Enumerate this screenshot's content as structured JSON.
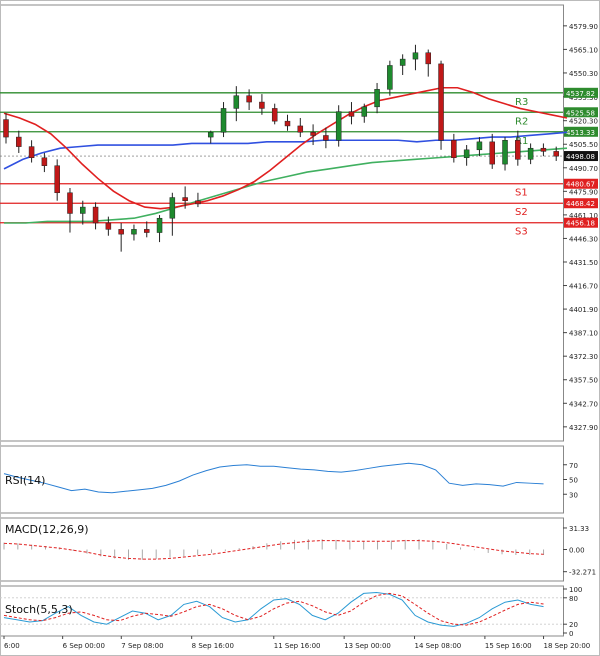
{
  "chart_data": {
    "type": "candlestick",
    "price_axis": {
      "range": [
        4319,
        4593
      ],
      "ticks": [
        4579.9,
        4565.1,
        4550.3,
        4535.3,
        4520.3,
        4505.5,
        4490.7,
        4475.9,
        4461.1,
        4446.3,
        4431.5,
        4416.7,
        4401.9,
        4387.1,
        4372.3,
        4357.5,
        4342.7,
        4327.9
      ],
      "last_price": 4498.08
    },
    "x_ticks": [
      {
        "i": 0,
        "label": "6:00"
      },
      {
        "i": 5,
        "label": "6 Sep 00:00"
      },
      {
        "i": 10,
        "label": "7 Sep 08:00"
      },
      {
        "i": 16,
        "label": "8 Sep 16:00"
      },
      {
        "i": 23,
        "label": "11 Sep 16:00"
      },
      {
        "i": 29,
        "label": "13 Sep 00:00"
      },
      {
        "i": 35,
        "label": "14 Sep 08:00"
      },
      {
        "i": 41,
        "label": "15 Sep 16:00"
      },
      {
        "i": 46,
        "label": "18 Sep 20:00"
      }
    ],
    "levels": [
      {
        "name": "R3",
        "value": 4537.82,
        "color": "#2e8b2e"
      },
      {
        "name": "R2",
        "value": 4525.58,
        "color": "#2e8b2e"
      },
      {
        "name": "R1",
        "value": 4513.33,
        "color": "#2e8b2e"
      },
      {
        "name": "S1",
        "value": 4480.67,
        "color": "#e02020"
      },
      {
        "name": "S2",
        "value": 4468.42,
        "color": "#e02020"
      },
      {
        "name": "S3",
        "value": 4456.18,
        "color": "#e02020"
      }
    ],
    "candles": [
      [
        4521,
        4525,
        4506,
        4510
      ],
      [
        4510,
        4514,
        4500,
        4504
      ],
      [
        4504,
        4508,
        4494,
        4497
      ],
      [
        4497,
        4500,
        4488,
        4492
      ],
      [
        4492,
        4496,
        4470,
        4475
      ],
      [
        4475,
        4478,
        4450,
        4462
      ],
      [
        4462,
        4470,
        4455,
        4466
      ],
      [
        4466,
        4469,
        4452,
        4456
      ],
      [
        4456,
        4460,
        4448,
        4452
      ],
      [
        4452,
        4456,
        4438,
        4449
      ],
      [
        4449,
        4455,
        4445,
        4452
      ],
      [
        4452,
        4457,
        4447,
        4450
      ],
      [
        4450,
        4461,
        4444,
        4459
      ],
      [
        4459,
        4475,
        4448,
        4472
      ],
      [
        4472,
        4479,
        4465,
        4470
      ],
      [
        4470,
        4475,
        4466,
        4468
      ],
      [
        4510,
        4514,
        4506,
        4513
      ],
      [
        4513,
        4532,
        4510,
        4528
      ],
      [
        4528,
        4542,
        4520,
        4536
      ],
      [
        4536,
        4540,
        4527,
        4532
      ],
      [
        4532,
        4537,
        4524,
        4528
      ],
      [
        4528,
        4531,
        4518,
        4520
      ],
      [
        4520,
        4524,
        4514,
        4517
      ],
      [
        4517,
        4522,
        4510,
        4513
      ],
      [
        4513,
        4518,
        4505,
        4511
      ],
      [
        4511,
        4516,
        4503,
        4508
      ],
      [
        4508,
        4530,
        4504,
        4526
      ],
      [
        4526,
        4532,
        4518,
        4523
      ],
      [
        4523,
        4531,
        4519,
        4529
      ],
      [
        4529,
        4544,
        4525,
        4540
      ],
      [
        4540,
        4558,
        4536,
        4555
      ],
      [
        4555,
        4562,
        4549,
        4559
      ],
      [
        4559,
        4568,
        4552,
        4563
      ],
      [
        4563,
        4565,
        4548,
        4556
      ],
      [
        4556,
        4558,
        4502,
        4508
      ],
      [
        4508,
        4512,
        4494,
        4497
      ],
      [
        4497,
        4505,
        4492,
        4502
      ],
      [
        4502,
        4510,
        4498,
        4507
      ],
      [
        4507,
        4512,
        4490,
        4493
      ],
      [
        4493,
        4510,
        4489,
        4508
      ],
      [
        4508,
        4514,
        4492,
        4496
      ],
      [
        4496,
        4506,
        4493,
        4503
      ],
      [
        4503,
        4506,
        4498,
        4501
      ],
      [
        4501,
        4504,
        4495,
        4498
      ]
    ],
    "ma_red": [
      4525,
      4522,
      4518,
      4512,
      4503,
      4493,
      4484,
      4476,
      4470,
      4466,
      4465,
      4466,
      4468,
      4470,
      4473,
      4477,
      4482,
      4489,
      4497,
      4505,
      4512,
      4518,
      4524,
      4529,
      4533,
      4535,
      4537,
      4539,
      4541,
      4541,
      4538,
      4534,
      4531,
      4528,
      4526,
      4524,
      4522
    ],
    "ma_blue": [
      4490,
      4496,
      4500,
      4503,
      4504,
      4505,
      4505,
      4505,
      4505,
      4505,
      4506,
      4506,
      4506,
      4506,
      4507,
      4507,
      4507,
      4508,
      4508,
      4508,
      4508,
      4508,
      4507,
      4508,
      4508,
      4509,
      4510,
      4510,
      4511,
      4512,
      4513
    ],
    "ma_green": [
      4456,
      4456,
      4457,
      4457,
      4457,
      4458,
      4459,
      4462,
      4466,
      4470,
      4474,
      4478,
      4482,
      4485,
      4488,
      4490,
      4492,
      4494,
      4495,
      4496,
      4497,
      4498,
      4499,
      4500,
      4501,
      4502,
      4503
    ],
    "rsi": {
      "label": "RSI(14)",
      "ticks": [
        70,
        50,
        30
      ],
      "values": [
        58,
        53,
        49,
        45,
        40,
        35,
        37,
        33,
        32,
        34,
        36,
        38,
        42,
        48,
        56,
        62,
        67,
        69,
        70,
        68,
        68,
        66,
        64,
        63,
        61,
        60,
        62,
        65,
        68,
        70,
        72,
        70,
        63,
        45,
        42,
        44,
        43,
        41,
        46,
        45,
        44
      ]
    },
    "macd": {
      "label": "MACD(12,26,9)",
      "ticks": [
        31.33,
        0.0,
        -32.271
      ],
      "hist": [
        10,
        9,
        7,
        5,
        3,
        -2,
        -6,
        -10,
        -13,
        -15,
        -15,
        -14,
        -12,
        -10,
        -8,
        -5,
        -2,
        2,
        5,
        9,
        12,
        14,
        15,
        15,
        14,
        13,
        12,
        12,
        13,
        14,
        15,
        13,
        8,
        3,
        -1,
        -5,
        -7,
        -8,
        -8,
        -8
      ],
      "signal": [
        9,
        8,
        6,
        4,
        2,
        -1,
        -4,
        -8,
        -11,
        -13,
        -14,
        -14,
        -13,
        -11,
        -9,
        -7,
        -4,
        -1,
        2,
        5,
        8,
        10,
        12,
        13,
        13,
        12,
        12,
        12,
        12,
        13,
        13,
        12,
        10,
        7,
        4,
        1,
        -2,
        -4,
        -6,
        -7
      ]
    },
    "stoch": {
      "label": "Stoch(5,5,3)",
      "ticks": [
        100,
        80,
        20,
        0
      ],
      "k": [
        35,
        30,
        25,
        28,
        45,
        60,
        40,
        25,
        20,
        35,
        50,
        45,
        30,
        40,
        65,
        72,
        60,
        35,
        25,
        30,
        55,
        75,
        78,
        65,
        40,
        30,
        45,
        70,
        90,
        92,
        88,
        75,
        40,
        25,
        18,
        15,
        22,
        35,
        55,
        70,
        75,
        65,
        60
      ],
      "d": [
        40,
        35,
        30,
        28,
        35,
        45,
        48,
        40,
        30,
        28,
        38,
        45,
        42,
        38,
        48,
        60,
        65,
        55,
        40,
        30,
        38,
        55,
        68,
        72,
        62,
        48,
        40,
        50,
        70,
        85,
        90,
        84,
        65,
        45,
        28,
        20,
        18,
        25,
        38,
        52,
        65,
        70,
        66
      ]
    }
  }
}
